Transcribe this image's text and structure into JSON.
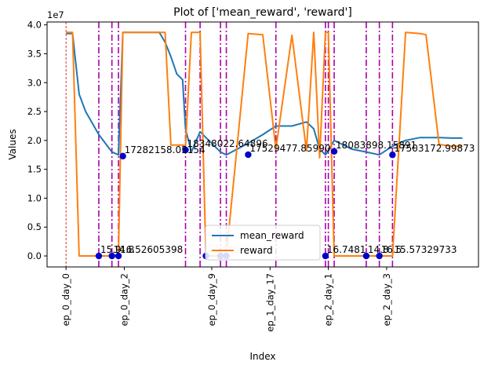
{
  "chart_data": {
    "type": "line",
    "title": "Plot of ['mean_reward', 'reward']",
    "xlabel": "Index",
    "ylabel": "Values",
    "y_scale_label": "1e7",
    "xlim": [
      -1.3,
      28.3
    ],
    "ylim": [
      -0.19,
      4.05
    ],
    "y_ticks": [
      0.0,
      0.5,
      1.0,
      1.5,
      2.0,
      2.5,
      3.0,
      3.5,
      4.0
    ],
    "y_tick_labels": [
      "0.0",
      "0.5",
      "1.0",
      "1.5",
      "2.0",
      "2.5",
      "3.0",
      "3.5",
      "4.0"
    ],
    "x_ticks": [
      0,
      4,
      10,
      14,
      18,
      22
    ],
    "x_tick_labels": [
      "ep_0_day_0",
      "ep_0_day_2",
      "ep_0_day_9",
      "ep_1_day_17",
      "ep_2_day_1",
      "ep_2_day_3"
    ],
    "legend_position": "lower center",
    "series": [
      {
        "name": "mean_reward",
        "color": "#1f77b4",
        "x": [
          0,
          0.45,
          0.9,
          1.35,
          1.8,
          2.25,
          2.7,
          3.15,
          3.6,
          3.9,
          4.2,
          5.5,
          6.4,
          6.8,
          7.2,
          7.6,
          8.0,
          8.2,
          8.6,
          9.2,
          9.6,
          10.6,
          11.0,
          12.5,
          13.5,
          14.4,
          15.5,
          16.5,
          17.0,
          17.4,
          17.8,
          18.0,
          18.4,
          18.8,
          19.6,
          20.6,
          21.5,
          22.4,
          23.3,
          24.3,
          24.7,
          25.6,
          26.5,
          27.2
        ],
        "y": [
          3.85,
          3.85,
          2.8,
          2.5,
          2.3,
          2.1,
          1.95,
          1.8,
          1.75,
          3.87,
          3.87,
          3.87,
          3.87,
          3.7,
          3.45,
          3.15,
          3.05,
          2.2,
          1.8,
          2.15,
          2.05,
          1.8,
          1.75,
          1.95,
          2.1,
          2.25,
          2.25,
          2.32,
          2.2,
          1.85,
          1.75,
          1.82,
          2.0,
          1.95,
          1.85,
          1.8,
          1.75,
          1.9,
          2.0,
          2.05,
          2.05,
          2.05,
          2.04,
          2.04
        ]
      },
      {
        "name": "reward",
        "color": "#ff7f0e",
        "x": [
          0,
          0.45,
          0.9,
          1.35,
          1.8,
          2.25,
          2.7,
          3.15,
          3.6,
          3.9,
          4.2,
          5.5,
          6.4,
          6.8,
          7.2,
          7.6,
          8.0,
          8.2,
          8.6,
          9.2,
          9.6,
          10.6,
          11.0,
          12.5,
          13.5,
          14.4,
          15.5,
          16.5,
          17.0,
          17.4,
          17.8,
          18.0,
          18.4,
          18.8,
          19.6,
          20.6,
          21.5,
          22.4,
          23.3,
          24.3,
          24.7,
          25.6,
          26.5,
          27.2
        ],
        "y": [
          3.87,
          3.87,
          0.0,
          0.0,
          0.0,
          0.0,
          0.0,
          0.0,
          0.0,
          3.87,
          3.87,
          3.87,
          3.87,
          3.87,
          1.92,
          1.92,
          1.92,
          1.9,
          3.87,
          3.87,
          0.0,
          0.0,
          0.0,
          3.85,
          3.83,
          1.85,
          3.82,
          1.82,
          3.87,
          1.7,
          3.87,
          3.87,
          0.0,
          0.0,
          0.0,
          0.0,
          0.0,
          0.0,
          3.87,
          3.85,
          3.83,
          1.93,
          1.9,
          1.9
        ]
      }
    ],
    "vlines": {
      "color": "#aa00aa",
      "x": [
        2.25,
        3.15,
        3.6,
        8.2,
        9.2,
        10.6,
        11.0,
        14.4,
        17.8,
        18.0,
        18.4,
        20.6,
        21.5,
        22.4
      ]
    },
    "red_vline": {
      "color": "#cc0000",
      "x": 0
    },
    "markers": {
      "color": "#0000cc",
      "points": [
        {
          "x": 2.25,
          "y": 0.0
        },
        {
          "x": 3.15,
          "y": 0.0
        },
        {
          "x": 3.6,
          "y": 0.0
        },
        {
          "x": 3.9,
          "y": 1.728
        },
        {
          "x": 8.2,
          "y": 1.835
        },
        {
          "x": 9.6,
          "y": 0.0
        },
        {
          "x": 10.6,
          "y": 0.0
        },
        {
          "x": 11.0,
          "y": 0.0
        },
        {
          "x": 12.5,
          "y": 1.753
        },
        {
          "x": 17.8,
          "y": 0.0
        },
        {
          "x": 18.4,
          "y": 1.81
        },
        {
          "x": 20.6,
          "y": 0.0
        },
        {
          "x": 21.5,
          "y": 0.0
        },
        {
          "x": 22.4,
          "y": 1.75
        }
      ]
    },
    "annotations": [
      {
        "text": "15.9",
        "x": 2.25,
        "y": 0.0,
        "faint": false
      },
      {
        "text": "14.8",
        "x": 3.15,
        "y": 0.0,
        "faint": false
      },
      {
        "text": "16.52605398",
        "x": 3.6,
        "y": 0.0,
        "faint": false
      },
      {
        "text": "17282158.05154",
        "x": 3.9,
        "y": 1.728,
        "faint": false
      },
      {
        "text": "18348022.64896",
        "x": 8.2,
        "y": 1.835,
        "faint": false
      },
      {
        "text": "14.8",
        "x": 9.6,
        "y": 0.0,
        "faint": true
      },
      {
        "text": "14.8",
        "x": 10.6,
        "y": 0.0,
        "faint": true
      },
      {
        "text": "15.15537",
        "x": 11.0,
        "y": 0.0,
        "faint": true
      },
      {
        "text": "17529477.85990",
        "x": 12.5,
        "y": 1.753,
        "faint": false
      },
      {
        "text": "16.7481",
        "x": 17.8,
        "y": 0.0,
        "faint": false
      },
      {
        "text": "18083898.15891",
        "x": 18.4,
        "y": 1.81,
        "faint": false
      },
      {
        "text": "14.8",
        "x": 20.6,
        "y": 0.0,
        "faint": false
      },
      {
        "text": "16.5",
        "x": 21.5,
        "y": 0.0,
        "faint": false
      },
      {
        "text": "15.57329733",
        "x": 22.4,
        "y": 0.0,
        "faint": false
      },
      {
        "text": "17503172.99873",
        "x": 22.4,
        "y": 1.75,
        "faint": false
      }
    ]
  }
}
